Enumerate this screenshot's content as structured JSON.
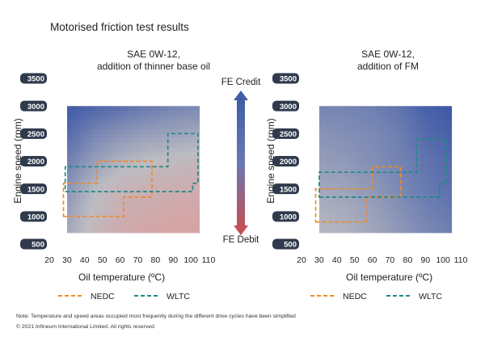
{
  "page": {
    "title": "Motorised friction test results",
    "note": "Note: Temperature and speed areas occupied most frequently during the different drive cycles have been simplified",
    "copyright": "© 2021   Infineum International Limited. All rights reserved"
  },
  "scale": {
    "top_label": "FE Credit",
    "bottom_label": "FE Debit",
    "top_color": "#3f5fa8",
    "bottom_color": "#c0505a"
  },
  "legend": [
    {
      "name": "NEDC",
      "color": "#f08a28"
    },
    {
      "name": "WLTC",
      "color": "#1f8a86"
    }
  ],
  "chart_data": [
    {
      "type": "heatmap",
      "title": "SAE 0W-12,",
      "subtitle": "addition of thinner base oil",
      "xlabel": "Oil temperature (ºC)",
      "ylabel": "Engine speed (rpm)",
      "xlim": [
        20,
        110
      ],
      "ylim": [
        500,
        3500
      ],
      "x_ticks": [
        20,
        30,
        40,
        50,
        60,
        70,
        80,
        90,
        100,
        110
      ],
      "y_ticks": [
        500,
        1000,
        1500,
        2000,
        2500,
        3000,
        3500
      ],
      "x_extent": [
        30,
        105
      ],
      "y_extent": [
        700,
        3000
      ],
      "grid_x": [
        30,
        45,
        60,
        75,
        90,
        105
      ],
      "grid_y": [
        3000,
        2500,
        2000,
        1500,
        1000,
        700
      ],
      "values": [
        [
          0.95,
          0.85,
          0.75,
          0.65,
          0.55,
          0.5
        ],
        [
          0.8,
          0.55,
          0.4,
          0.3,
          0.25,
          0.2
        ],
        [
          0.6,
          0.3,
          0.1,
          0.0,
          -0.05,
          -0.1
        ],
        [
          0.4,
          0.05,
          -0.15,
          -0.2,
          -0.25,
          -0.3
        ],
        [
          0.25,
          -0.05,
          -0.25,
          -0.35,
          -0.4,
          -0.4
        ],
        [
          0.2,
          -0.1,
          -0.3,
          -0.4,
          -0.45,
          -0.45
        ]
      ],
      "regions": [
        {
          "cycle": "NEDC",
          "points": [
            [
              28,
              1000
            ],
            [
              62,
              1000
            ],
            [
              62,
              1350
            ],
            [
              78,
              1350
            ],
            [
              78,
              2000
            ],
            [
              47,
              2000
            ],
            [
              47,
              1600
            ],
            [
              28,
              1600
            ]
          ]
        },
        {
          "cycle": "WLTC",
          "points": [
            [
              29,
              1450
            ],
            [
              101,
              1450
            ],
            [
              101,
              1600
            ],
            [
              104,
              1600
            ],
            [
              104,
              2500
            ],
            [
              87,
              2500
            ],
            [
              87,
              1900
            ],
            [
              29,
              1900
            ]
          ]
        }
      ]
    },
    {
      "type": "heatmap",
      "title": "SAE 0W-12,",
      "subtitle": "addition of FM",
      "xlabel": "Oil temperature (ºC)",
      "ylabel": "Engine speed (rpm)",
      "xlim": [
        20,
        110
      ],
      "ylim": [
        500,
        3500
      ],
      "x_ticks": [
        20,
        30,
        40,
        50,
        60,
        70,
        80,
        90,
        100,
        110
      ],
      "y_ticks": [
        500,
        1000,
        1500,
        2000,
        2500,
        3000,
        3500
      ],
      "x_extent": [
        30,
        105
      ],
      "y_extent": [
        700,
        3000
      ],
      "grid_x": [
        30,
        45,
        60,
        75,
        90,
        105
      ],
      "grid_y": [
        3000,
        2500,
        2000,
        1500,
        1000,
        700
      ],
      "values": [
        [
          0.55,
          0.55,
          0.6,
          0.7,
          0.9,
          0.98
        ],
        [
          0.4,
          0.45,
          0.5,
          0.6,
          0.8,
          0.9
        ],
        [
          0.3,
          0.35,
          0.45,
          0.55,
          0.7,
          0.8
        ],
        [
          0.2,
          0.25,
          0.35,
          0.5,
          0.65,
          0.75
        ],
        [
          0.1,
          0.15,
          0.25,
          0.4,
          0.55,
          0.65
        ],
        [
          0.05,
          0.1,
          0.2,
          0.35,
          0.5,
          0.6
        ]
      ],
      "regions": [
        {
          "cycle": "NEDC",
          "points": [
            [
              28,
              900
            ],
            [
              57,
              900
            ],
            [
              57,
              1350
            ],
            [
              76,
              1350
            ],
            [
              76,
              1900
            ],
            [
              60,
              1900
            ],
            [
              60,
              1500
            ],
            [
              28,
              1500
            ]
          ]
        },
        {
          "cycle": "WLTC",
          "points": [
            [
              30,
              1350
            ],
            [
              98,
              1350
            ],
            [
              98,
              1600
            ],
            [
              102,
              1600
            ],
            [
              102,
              2400
            ],
            [
              85,
              2400
            ],
            [
              85,
              1800
            ],
            [
              30,
              1800
            ]
          ]
        }
      ]
    }
  ]
}
